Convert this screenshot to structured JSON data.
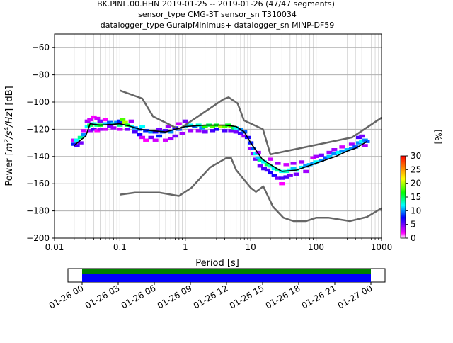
{
  "header": {
    "line1": "BK.PINL.00.HHN   2019-01-25 -- 2019-01-26  (47/47 segments)",
    "line2": "sensor_type CMG-3T sensor_sn T310034",
    "line3": "datalogger_type GuralpMinimus+ datalogger_sn MINP-DF59"
  },
  "colorbar": {
    "label": "[%]",
    "ticks": [
      "0",
      "5",
      "10",
      "15",
      "20",
      "25",
      "30"
    ],
    "tick_values": [
      0,
      5,
      10,
      15,
      20,
      25,
      30
    ],
    "range": [
      0,
      30
    ],
    "colormap": "pqlx (white-magenta-blue-cyan-green-yellow-orange-red)"
  },
  "timeline": {
    "ticks": [
      "01-26 00",
      "01-26 03",
      "01-26 06",
      "01-26 09",
      "01-26 12",
      "01-26 15",
      "01-26 18",
      "01-26 21",
      "01-27 00"
    ],
    "coverage_colors": {
      "top": "#008000",
      "bottom": "#0000ff"
    }
  },
  "chart_data": {
    "type": "heatmap",
    "xlabel": "Period [s]",
    "ylabel_parts": {
      "a": "Power [",
      "b": "m",
      "c": "2",
      "d": "/s",
      "e": "4",
      "f": "/Hz",
      "g": "] [dB]"
    },
    "x_scale": "log",
    "xlim": [
      0.01,
      1000
    ],
    "ylim": [
      -200,
      -50
    ],
    "xticks": [
      "0.01",
      "0.1",
      "1",
      "10",
      "100",
      "1000"
    ],
    "xtick_values": [
      0.01,
      0.1,
      1,
      10,
      100,
      1000
    ],
    "yticks": [
      "-200",
      "-180",
      "-160",
      "-140",
      "-120",
      "-100",
      "-80",
      "-60"
    ],
    "ytick_values": [
      -200,
      -180,
      -160,
      -140,
      -120,
      -100,
      -80,
      -60
    ],
    "grid": true,
    "colors": {
      "noise_models": "#666666",
      "mode": "#000000"
    },
    "series": [
      {
        "role": "noise-model-high",
        "x": [
          0.1,
          0.22,
          0.32,
          0.8,
          3.8,
          4.6,
          6.3,
          7.9,
          15.4,
          20,
          354.8,
          1000
        ],
        "y": [
          -91.5,
          -97.4,
          -110.5,
          -120,
          -98,
          -96.5,
          -101,
          -113.5,
          -120,
          -138.5,
          -126,
          -111.5
        ]
      },
      {
        "role": "noise-model-low",
        "x": [
          0.1,
          0.17,
          0.4,
          0.8,
          1.24,
          2.4,
          4.3,
          5,
          6,
          10,
          12,
          15.6,
          21.9,
          31.6,
          45,
          70,
          101,
          154,
          328,
          600,
          1000
        ],
        "y": [
          -168,
          -166.5,
          -166.5,
          -169,
          -163,
          -148,
          -141,
          -141,
          -150,
          -163,
          -166,
          -162,
          -177,
          -185,
          -187.5,
          -187.5,
          -185,
          -185,
          -187.5,
          -184.5,
          -178
        ]
      },
      {
        "role": "mode",
        "x": [
          0.02,
          0.025,
          0.03,
          0.035,
          0.05,
          0.1,
          0.15,
          0.2,
          0.3,
          0.5,
          1.0,
          2.0,
          4.0,
          6.0,
          8.0,
          10,
          15,
          20,
          30,
          50,
          100,
          200,
          300,
          400,
          600
        ],
        "y": [
          -132,
          -128,
          -125,
          -116,
          -117,
          -116,
          -118,
          -120,
          -121,
          -122,
          -118,
          -117,
          -117,
          -118,
          -122,
          -130,
          -142,
          -146,
          -151,
          -150,
          -145,
          -140,
          -136,
          -134,
          -129
        ]
      }
    ],
    "density_cells": [
      {
        "x": 0.02,
        "y": -131,
        "pct": 8
      },
      {
        "x": 0.02,
        "y": -128,
        "pct": 3
      },
      {
        "x": 0.022,
        "y": -128,
        "pct": 12
      },
      {
        "x": 0.022,
        "y": -132,
        "pct": 6
      },
      {
        "x": 0.025,
        "y": -126,
        "pct": 14
      },
      {
        "x": 0.025,
        "y": -130,
        "pct": 5
      },
      {
        "x": 0.028,
        "y": -124,
        "pct": 10
      },
      {
        "x": 0.028,
        "y": -121,
        "pct": 3
      },
      {
        "x": 0.032,
        "y": -118,
        "pct": 12
      },
      {
        "x": 0.032,
        "y": -114,
        "pct": 4
      },
      {
        "x": 0.035,
        "y": -113,
        "pct": 3
      },
      {
        "x": 0.035,
        "y": -117,
        "pct": 15
      },
      {
        "x": 0.035,
        "y": -121,
        "pct": 4
      },
      {
        "x": 0.04,
        "y": -111,
        "pct": 2
      },
      {
        "x": 0.04,
        "y": -116,
        "pct": 12
      },
      {
        "x": 0.04,
        "y": -120,
        "pct": 6
      },
      {
        "x": 0.045,
        "y": -112,
        "pct": 3
      },
      {
        "x": 0.045,
        "y": -117,
        "pct": 14
      },
      {
        "x": 0.045,
        "y": -121,
        "pct": 2
      },
      {
        "x": 0.05,
        "y": -114,
        "pct": 5
      },
      {
        "x": 0.05,
        "y": -117,
        "pct": 16
      },
      {
        "x": 0.05,
        "y": -120,
        "pct": 4
      },
      {
        "x": 0.06,
        "y": -113,
        "pct": 2
      },
      {
        "x": 0.06,
        "y": -116,
        "pct": 11
      },
      {
        "x": 0.06,
        "y": -120,
        "pct": 3
      },
      {
        "x": 0.07,
        "y": -115,
        "pct": 9
      },
      {
        "x": 0.07,
        "y": -118,
        "pct": 5
      },
      {
        "x": 0.08,
        "y": -116,
        "pct": 12
      },
      {
        "x": 0.08,
        "y": -119,
        "pct": 4
      },
      {
        "x": 0.09,
        "y": -115,
        "pct": 10
      },
      {
        "x": 0.1,
        "y": -114,
        "pct": 8
      },
      {
        "x": 0.1,
        "y": -117,
        "pct": 14
      },
      {
        "x": 0.1,
        "y": -120,
        "pct": 3
      },
      {
        "x": 0.11,
        "y": -113,
        "pct": 18
      },
      {
        "x": 0.11,
        "y": -116,
        "pct": 6
      },
      {
        "x": 0.12,
        "y": -115,
        "pct": 20
      },
      {
        "x": 0.13,
        "y": -117,
        "pct": 16
      },
      {
        "x": 0.13,
        "y": -120,
        "pct": 5
      },
      {
        "x": 0.15,
        "y": -118,
        "pct": 12
      },
      {
        "x": 0.15,
        "y": -114,
        "pct": 4
      },
      {
        "x": 0.17,
        "y": -119,
        "pct": 10
      },
      {
        "x": 0.17,
        "y": -122,
        "pct": 6
      },
      {
        "x": 0.2,
        "y": -120,
        "pct": 9
      },
      {
        "x": 0.2,
        "y": -124,
        "pct": 7
      },
      {
        "x": 0.22,
        "y": -118,
        "pct": 12
      },
      {
        "x": 0.22,
        "y": -126,
        "pct": 3
      },
      {
        "x": 0.25,
        "y": -121,
        "pct": 8
      },
      {
        "x": 0.25,
        "y": -128,
        "pct": 2
      },
      {
        "x": 0.3,
        "y": -122,
        "pct": 10
      },
      {
        "x": 0.3,
        "y": -126,
        "pct": 5
      },
      {
        "x": 0.35,
        "y": -122,
        "pct": 7
      },
      {
        "x": 0.35,
        "y": -128,
        "pct": 3
      },
      {
        "x": 0.4,
        "y": -120,
        "pct": 5
      },
      {
        "x": 0.4,
        "y": -125,
        "pct": 8
      },
      {
        "x": 0.45,
        "y": -122,
        "pct": 9
      },
      {
        "x": 0.5,
        "y": -121,
        "pct": 6
      },
      {
        "x": 0.5,
        "y": -128,
        "pct": 3
      },
      {
        "x": 0.55,
        "y": -118,
        "pct": 4
      },
      {
        "x": 0.6,
        "y": -122,
        "pct": 10
      },
      {
        "x": 0.6,
        "y": -127,
        "pct": 4
      },
      {
        "x": 0.7,
        "y": -119,
        "pct": 7
      },
      {
        "x": 0.7,
        "y": -125,
        "pct": 5
      },
      {
        "x": 0.8,
        "y": -120,
        "pct": 9
      },
      {
        "x": 0.8,
        "y": -116,
        "pct": 3
      },
      {
        "x": 0.9,
        "y": -123,
        "pct": 4
      },
      {
        "x": 1.0,
        "y": -118,
        "pct": 11
      },
      {
        "x": 1.0,
        "y": -114,
        "pct": 5
      },
      {
        "x": 1.2,
        "y": -117,
        "pct": 12
      },
      {
        "x": 1.2,
        "y": -121,
        "pct": 4
      },
      {
        "x": 1.4,
        "y": -118,
        "pct": 9
      },
      {
        "x": 1.6,
        "y": -117,
        "pct": 13
      },
      {
        "x": 1.6,
        "y": -121,
        "pct": 4
      },
      {
        "x": 1.8,
        "y": -119,
        "pct": 10
      },
      {
        "x": 2.0,
        "y": -118,
        "pct": 17
      },
      {
        "x": 2.0,
        "y": -122,
        "pct": 5
      },
      {
        "x": 2.3,
        "y": -117,
        "pct": 15
      },
      {
        "x": 2.6,
        "y": -118,
        "pct": 18
      },
      {
        "x": 2.6,
        "y": -121,
        "pct": 6
      },
      {
        "x": 3.0,
        "y": -117,
        "pct": 16
      },
      {
        "x": 3.0,
        "y": -120,
        "pct": 7
      },
      {
        "x": 3.5,
        "y": -118,
        "pct": 20
      },
      {
        "x": 4.0,
        "y": -118,
        "pct": 18
      },
      {
        "x": 4.0,
        "y": -121,
        "pct": 6
      },
      {
        "x": 4.5,
        "y": -117,
        "pct": 16
      },
      {
        "x": 5.0,
        "y": -118,
        "pct": 19
      },
      {
        "x": 5.0,
        "y": -121,
        "pct": 5
      },
      {
        "x": 5.5,
        "y": -119,
        "pct": 15
      },
      {
        "x": 6.0,
        "y": -119,
        "pct": 12
      },
      {
        "x": 6.0,
        "y": -122,
        "pct": 5
      },
      {
        "x": 7.0,
        "y": -120,
        "pct": 10
      },
      {
        "x": 7.0,
        "y": -123,
        "pct": 6
      },
      {
        "x": 8.0,
        "y": -122,
        "pct": 9
      },
      {
        "x": 8.0,
        "y": -125,
        "pct": 4
      },
      {
        "x": 9.0,
        "y": -126,
        "pct": 7
      },
      {
        "x": 10,
        "y": -130,
        "pct": 8
      },
      {
        "x": 10,
        "y": -134,
        "pct": 4
      },
      {
        "x": 11,
        "y": -134,
        "pct": 9
      },
      {
        "x": 11,
        "y": -138,
        "pct": 4
      },
      {
        "x": 12,
        "y": -138,
        "pct": 12
      },
      {
        "x": 12,
        "y": -142,
        "pct": 5
      },
      {
        "x": 13,
        "y": -141,
        "pct": 11
      },
      {
        "x": 13,
        "y": -137,
        "pct": 4
      },
      {
        "x": 14,
        "y": -143,
        "pct": 14
      },
      {
        "x": 14,
        "y": -147,
        "pct": 5
      },
      {
        "x": 16,
        "y": -144,
        "pct": 12
      },
      {
        "x": 16,
        "y": -149,
        "pct": 6
      },
      {
        "x": 18,
        "y": -146,
        "pct": 15
      },
      {
        "x": 18,
        "y": -150,
        "pct": 6
      },
      {
        "x": 20,
        "y": -147,
        "pct": 13
      },
      {
        "x": 20,
        "y": -152,
        "pct": 7
      },
      {
        "x": 20,
        "y": -142,
        "pct": 3
      },
      {
        "x": 23,
        "y": -149,
        "pct": 12
      },
      {
        "x": 23,
        "y": -154,
        "pct": 7
      },
      {
        "x": 26,
        "y": -150,
        "pct": 14
      },
      {
        "x": 26,
        "y": -156,
        "pct": 5
      },
      {
        "x": 26,
        "y": -145,
        "pct": 4
      },
      {
        "x": 30,
        "y": -151,
        "pct": 12
      },
      {
        "x": 30,
        "y": -156,
        "pct": 6
      },
      {
        "x": 30,
        "y": -160,
        "pct": 2
      },
      {
        "x": 35,
        "y": -151,
        "pct": 13
      },
      {
        "x": 35,
        "y": -155,
        "pct": 6
      },
      {
        "x": 35,
        "y": -146,
        "pct": 3
      },
      {
        "x": 40,
        "y": -150,
        "pct": 12
      },
      {
        "x": 40,
        "y": -154,
        "pct": 5
      },
      {
        "x": 45,
        "y": -149,
        "pct": 11
      },
      {
        "x": 45,
        "y": -145,
        "pct": 4
      },
      {
        "x": 50,
        "y": -150,
        "pct": 13
      },
      {
        "x": 50,
        "y": -153,
        "pct": 5
      },
      {
        "x": 60,
        "y": -148,
        "pct": 12
      },
      {
        "x": 60,
        "y": -144,
        "pct": 4
      },
      {
        "x": 70,
        "y": -147,
        "pct": 10
      },
      {
        "x": 70,
        "y": -151,
        "pct": 4
      },
      {
        "x": 80,
        "y": -146,
        "pct": 11
      },
      {
        "x": 90,
        "y": -145,
        "pct": 10
      },
      {
        "x": 90,
        "y": -141,
        "pct": 3
      },
      {
        "x": 100,
        "y": -144,
        "pct": 12
      },
      {
        "x": 100,
        "y": -140,
        "pct": 4
      },
      {
        "x": 120,
        "y": -143,
        "pct": 10
      },
      {
        "x": 120,
        "y": -139,
        "pct": 5
      },
      {
        "x": 140,
        "y": -141,
        "pct": 9
      },
      {
        "x": 160,
        "y": -140,
        "pct": 11
      },
      {
        "x": 160,
        "y": -137,
        "pct": 4
      },
      {
        "x": 190,
        "y": -138,
        "pct": 10
      },
      {
        "x": 190,
        "y": -135,
        "pct": 4
      },
      {
        "x": 220,
        "y": -137,
        "pct": 12
      },
      {
        "x": 250,
        "y": -136,
        "pct": 10
      },
      {
        "x": 250,
        "y": -133,
        "pct": 3
      },
      {
        "x": 300,
        "y": -135,
        "pct": 11
      },
      {
        "x": 350,
        "y": -134,
        "pct": 10
      },
      {
        "x": 350,
        "y": -131,
        "pct": 4
      },
      {
        "x": 400,
        "y": -133,
        "pct": 9
      },
      {
        "x": 450,
        "y": -130,
        "pct": 10
      },
      {
        "x": 450,
        "y": -126,
        "pct": 6
      },
      {
        "x": 500,
        "y": -129,
        "pct": 12
      },
      {
        "x": 500,
        "y": -125,
        "pct": 5
      },
      {
        "x": 560,
        "y": -128,
        "pct": 10
      },
      {
        "x": 560,
        "y": -132,
        "pct": 4
      },
      {
        "x": 600,
        "y": -129,
        "pct": 9
      }
    ]
  }
}
